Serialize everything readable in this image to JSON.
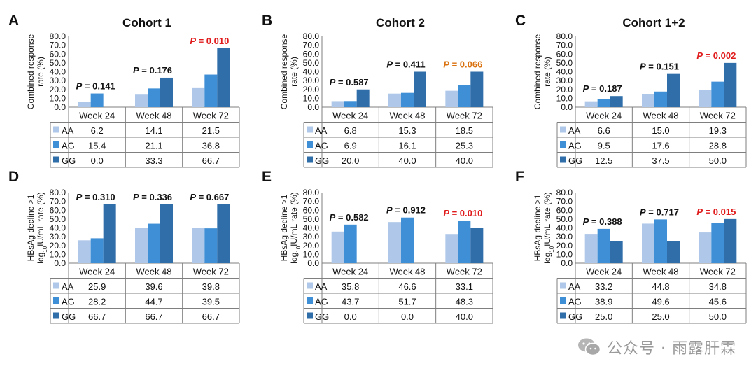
{
  "colors": {
    "AA": "#afc8e9",
    "AG": "#3f8fd6",
    "GG": "#2f6ea8",
    "axis": "#7f7f7f",
    "pRed": "#e01a1a",
    "pOrange": "#d9720f",
    "pBlack": "#111111"
  },
  "categories": [
    "Week 24",
    "Week 48",
    "Week 72"
  ],
  "genotypes": [
    "AA",
    "AG",
    "GG"
  ],
  "ticks": [
    "0.0",
    "10.0",
    "20.0",
    "30.0",
    "40.0",
    "50.0",
    "60.0",
    "70.0",
    "80.0"
  ],
  "watermark": "公众号 · 雨露肝霖",
  "chart_data": [
    {
      "type": "bar",
      "panel": "A",
      "title": "Cohort 1",
      "ylabel": [
        "Combined response",
        "rate (%)"
      ],
      "ylim": [
        0,
        80
      ],
      "categories": [
        "Week 24",
        "Week 48",
        "Week 72"
      ],
      "series": [
        {
          "name": "AA",
          "values": [
            6.2,
            14.1,
            21.5
          ]
        },
        {
          "name": "AG",
          "values": [
            15.4,
            21.1,
            36.8
          ]
        },
        {
          "name": "GG",
          "values": [
            0.0,
            33.3,
            66.7
          ]
        }
      ],
      "p_values": [
        {
          "label": "P",
          "value": "= 0.141",
          "color": "black"
        },
        {
          "label": "P",
          "value": "= 0.176",
          "color": "black"
        },
        {
          "label": "P",
          "value": "= 0.010",
          "color": "red"
        }
      ],
      "table": {
        "AA": [
          "6.2",
          "14.1",
          "21.5"
        ],
        "AG": [
          "15.4",
          "21.1",
          "36.8"
        ],
        "GG": [
          "0.0",
          "33.3",
          "66.7"
        ]
      }
    },
    {
      "type": "bar",
      "panel": "B",
      "title": "Cohort 2",
      "ylabel": [
        "Combined response",
        "rate (%)"
      ],
      "ylim": [
        0,
        80
      ],
      "categories": [
        "Week 24",
        "Week 48",
        "Week 72"
      ],
      "series": [
        {
          "name": "AA",
          "values": [
            6.8,
            15.3,
            18.5
          ]
        },
        {
          "name": "AG",
          "values": [
            6.9,
            16.1,
            25.3
          ]
        },
        {
          "name": "GG",
          "values": [
            20.0,
            40.0,
            40.0
          ]
        }
      ],
      "p_values": [
        {
          "label": "P",
          "value": "= 0.587",
          "color": "black"
        },
        {
          "label": "P",
          "value": "= 0.411",
          "color": "black"
        },
        {
          "label": "P",
          "value": "= 0.066",
          "color": "orange"
        }
      ],
      "table": {
        "AA": [
          "6.8",
          "15.3",
          "18.5"
        ],
        "AG": [
          "6.9",
          "16.1",
          "25.3"
        ],
        "GG": [
          "20.0",
          "40.0",
          "40.0"
        ]
      }
    },
    {
      "type": "bar",
      "panel": "C",
      "title": "Cohort 1+2",
      "ylabel": [
        "Combined response",
        "rate (%)"
      ],
      "ylim": [
        0,
        80
      ],
      "categories": [
        "Week 24",
        "Week 48",
        "Week 72"
      ],
      "series": [
        {
          "name": "AA",
          "values": [
            6.6,
            15.0,
            19.3
          ]
        },
        {
          "name": "AG",
          "values": [
            9.5,
            17.6,
            28.8
          ]
        },
        {
          "name": "GG",
          "values": [
            12.5,
            37.5,
            50.0
          ]
        }
      ],
      "p_values": [
        {
          "label": "P",
          "value": "= 0.187",
          "color": "black"
        },
        {
          "label": "P",
          "value": "= 0.151",
          "color": "black"
        },
        {
          "label": "P",
          "value": "= 0.002",
          "color": "red"
        }
      ],
      "table": {
        "AA": [
          "6.6",
          "15.0",
          "19.3"
        ],
        "AG": [
          "9.5",
          "17.6",
          "28.8"
        ],
        "GG": [
          "12.5",
          "37.5",
          "50.0"
        ]
      }
    },
    {
      "type": "bar",
      "panel": "D",
      "title": "",
      "ylabel": [
        "HBsAg decline >1",
        "log10IU/mL rate (%)"
      ],
      "ylim": [
        0,
        80
      ],
      "categories": [
        "Week 24",
        "Week 48",
        "Week 72"
      ],
      "series": [
        {
          "name": "AA",
          "values": [
            25.9,
            39.6,
            39.8
          ]
        },
        {
          "name": "AG",
          "values": [
            28.2,
            44.7,
            39.5
          ]
        },
        {
          "name": "GG",
          "values": [
            66.7,
            66.7,
            66.7
          ]
        }
      ],
      "p_values": [
        {
          "label": "P",
          "value": "= 0.310",
          "color": "black"
        },
        {
          "label": "P",
          "value": "= 0.336",
          "color": "black"
        },
        {
          "label": "P",
          "value": "= 0.667",
          "color": "black"
        }
      ],
      "table": {
        "AA": [
          "25.9",
          "39.6",
          "39.8"
        ],
        "AG": [
          "28.2",
          "44.7",
          "39.5"
        ],
        "GG": [
          "66.7",
          "66.7",
          "66.7"
        ]
      }
    },
    {
      "type": "bar",
      "panel": "E",
      "title": "",
      "ylabel": [
        "HBsAg decline >1",
        "log10IU/mL rate (%)"
      ],
      "ylim": [
        0,
        80
      ],
      "categories": [
        "Week 24",
        "Week 48",
        "Week 72"
      ],
      "series": [
        {
          "name": "AA",
          "values": [
            35.8,
            46.6,
            33.1
          ]
        },
        {
          "name": "AG",
          "values": [
            43.7,
            51.7,
            48.3
          ]
        },
        {
          "name": "GG",
          "values": [
            0.0,
            0.0,
            40.0
          ]
        }
      ],
      "p_values": [
        {
          "label": "P",
          "value": "= 0.582",
          "color": "black"
        },
        {
          "label": "P",
          "value": "= 0.912",
          "color": "black"
        },
        {
          "label": "P",
          "value": "= 0.010",
          "color": "red"
        }
      ],
      "table": {
        "AA": [
          "35.8",
          "46.6",
          "33.1"
        ],
        "AG": [
          "43.7",
          "51.7",
          "48.3"
        ],
        "GG": [
          "0.0",
          "0.0",
          "40.0"
        ]
      }
    },
    {
      "type": "bar",
      "panel": "F",
      "title": "",
      "ylabel": [
        "HBsAg decline >1",
        "log10IU/mL rate (%)"
      ],
      "ylim": [
        0,
        80
      ],
      "categories": [
        "Week 24",
        "Week 48",
        "Week 72"
      ],
      "series": [
        {
          "name": "AA",
          "values": [
            33.2,
            44.8,
            34.8
          ]
        },
        {
          "name": "AG",
          "values": [
            38.9,
            49.6,
            45.6
          ]
        },
        {
          "name": "GG",
          "values": [
            25.0,
            25.0,
            50.0
          ]
        }
      ],
      "p_values": [
        {
          "label": "P",
          "value": "= 0.388",
          "color": "black"
        },
        {
          "label": "P",
          "value": "= 0.717",
          "color": "black"
        },
        {
          "label": "P",
          "value": "= 0.015",
          "color": "red"
        }
      ],
      "table": {
        "AA": [
          "33.2",
          "44.8",
          "34.8"
        ],
        "AG": [
          "38.9",
          "49.6",
          "45.6"
        ],
        "GG": [
          "25.0",
          "25.0",
          "50.0"
        ]
      }
    }
  ]
}
